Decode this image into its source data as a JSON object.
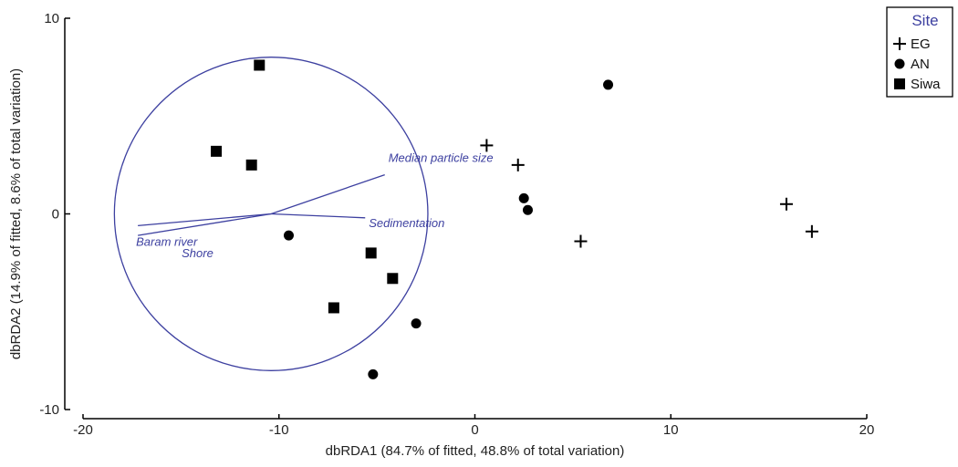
{
  "chart_data": {
    "type": "scatter",
    "xlabel": "dbRDA1 (84.7% of fitted, 48.8% of total variation)",
    "ylabel": "dbRDA2 (14.9% of fitted, 8.6% of total variation)",
    "xlim": [
      -20,
      20
    ],
    "ylim": [
      -10,
      10
    ],
    "x_ticks": [
      -20,
      -10,
      0,
      10,
      20
    ],
    "y_ticks": [
      10,
      0,
      -10
    ],
    "grid": false,
    "legend": {
      "title": "Site",
      "placement": "top-right",
      "entries": [
        "EG",
        "AN",
        "Siwa"
      ]
    },
    "series": [
      {
        "name": "EG",
        "marker": "plus",
        "points": [
          {
            "x": 0.6,
            "y": 3.5
          },
          {
            "x": 2.2,
            "y": 2.5
          },
          {
            "x": 5.4,
            "y": -1.4
          },
          {
            "x": 15.9,
            "y": 0.5
          },
          {
            "x": 17.2,
            "y": -0.9
          }
        ]
      },
      {
        "name": "AN",
        "marker": "circle",
        "points": [
          {
            "x": 6.8,
            "y": 6.6
          },
          {
            "x": 2.5,
            "y": 0.8
          },
          {
            "x": 2.7,
            "y": 0.2
          },
          {
            "x": -9.5,
            "y": -1.1
          },
          {
            "x": -3.0,
            "y": -5.6
          },
          {
            "x": -5.2,
            "y": -8.2
          }
        ]
      },
      {
        "name": "Siwa",
        "marker": "square",
        "points": [
          {
            "x": -11.0,
            "y": 7.6
          },
          {
            "x": -13.2,
            "y": 3.2
          },
          {
            "x": -11.4,
            "y": 2.5
          },
          {
            "x": -5.3,
            "y": -2.0
          },
          {
            "x": -4.2,
            "y": -3.3
          },
          {
            "x": -7.2,
            "y": -4.8
          }
        ]
      }
    ],
    "vectors": {
      "origin": [
        -10.4,
        0
      ],
      "circle_radius": 8.0,
      "items": [
        {
          "name": "Median particle size",
          "x": -4.6,
          "y": 2.0
        },
        {
          "name": "Sedimentation",
          "x": -5.6,
          "y": -0.2
        },
        {
          "name": "Baram river",
          "x": -17.2,
          "y": -0.6
        },
        {
          "name": "Shore",
          "x": -17.2,
          "y": -1.1
        }
      ]
    },
    "colors": {
      "vector": "#3d40a0",
      "marker": "#000000",
      "axis": "#000000"
    }
  }
}
